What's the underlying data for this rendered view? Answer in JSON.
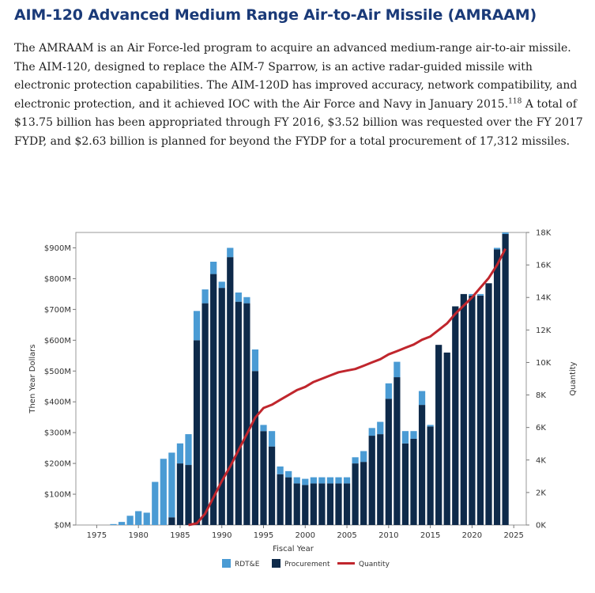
{
  "page": {
    "title": "AIM-120 Advanced Medium Range Air-to-Air Missile (AMRAAM)",
    "paragraph_part1": "The AMRAAM is an Air Force-led program to acquire an advanced medium-range air-to-air missile. The AIM-120, designed to replace the AIM-7 Sparrow, is an active radar-guided missile with electronic protection capabilities. The AIM-120D has improved accuracy, network compatibility, and electronic protection, and it achieved IOC with the Air Force and Navy in January 2015.",
    "footnote": "118",
    "paragraph_part2": " A total of $13.75 billion has been appropriated through FY 2016, $3.52 billion was requested over the FY 2017 FYDP, and $2.63 billion is planned for beyond the FYDP for a total procurement of 17,312 missiles."
  },
  "chart_data": {
    "type": "bar",
    "stacked": true,
    "xlabel": "Fiscal Year",
    "ylabel": "Then Year Dollars",
    "y2label": "Quantity",
    "xlim": [
      1972.5,
      2026.5
    ],
    "ylim": [
      0,
      950
    ],
    "y2lim": [
      0,
      18000
    ],
    "x_ticks": [
      1975,
      1980,
      1985,
      1990,
      1995,
      2000,
      2005,
      2010,
      2015,
      2020,
      2025
    ],
    "y_ticks": [
      0,
      100,
      200,
      300,
      400,
      500,
      600,
      700,
      800,
      900
    ],
    "y_tick_labels": [
      "$0M",
      "$100M",
      "$200M",
      "$300M",
      "$400M",
      "$500M",
      "$600M",
      "$700M",
      "$800M",
      "$900M"
    ],
    "y2_ticks": [
      0,
      2000,
      4000,
      6000,
      8000,
      10000,
      12000,
      14000,
      16000,
      18000
    ],
    "y2_tick_labels": [
      "0K",
      "2K",
      "4K",
      "6K",
      "8K",
      "10K",
      "12K",
      "14K",
      "16K",
      "18K"
    ],
    "grid": false,
    "legend_position": "bottom",
    "colors": {
      "rdte": "#4a9bd4",
      "procurement": "#0e2a4a",
      "quantity": "#c0262d"
    },
    "years": [
      1977,
      1978,
      1979,
      1980,
      1981,
      1982,
      1983,
      1984,
      1985,
      1986,
      1987,
      1988,
      1989,
      1990,
      1991,
      1992,
      1993,
      1994,
      1995,
      1996,
      1997,
      1998,
      1999,
      2000,
      2001,
      2002,
      2003,
      2004,
      2005,
      2006,
      2007,
      2008,
      2009,
      2010,
      2011,
      2012,
      2013,
      2014,
      2015,
      2016,
      2017,
      2018,
      2019,
      2020,
      2021,
      2022,
      2023,
      2024
    ],
    "series": [
      {
        "name": "RDT&E",
        "key": "rdte",
        "values": [
          3,
          10,
          30,
          45,
          40,
          140,
          215,
          210,
          65,
          100,
          95,
          45,
          40,
          20,
          30,
          30,
          20,
          70,
          20,
          50,
          25,
          20,
          20,
          20,
          20,
          20,
          20,
          20,
          20,
          20,
          35,
          25,
          40,
          50,
          50,
          40,
          25,
          45,
          5,
          0,
          0,
          0,
          0,
          5,
          5,
          0,
          5,
          5
        ]
      },
      {
        "name": "Procurement",
        "key": "procurement",
        "values": [
          0,
          0,
          0,
          0,
          0,
          0,
          0,
          25,
          200,
          195,
          600,
          720,
          815,
          770,
          870,
          725,
          720,
          500,
          305,
          255,
          165,
          155,
          135,
          130,
          135,
          135,
          135,
          135,
          135,
          200,
          205,
          290,
          295,
          410,
          480,
          265,
          280,
          390,
          320,
          585,
          560,
          710,
          750,
          745,
          745,
          785,
          895,
          945
        ]
      },
      {
        "name": "Quantity",
        "key": "quantity",
        "type": "line",
        "x": [
          1986,
          1987,
          1988,
          1989,
          1990,
          1991,
          1992,
          1993,
          1994,
          1995,
          1996,
          1997,
          1998,
          1999,
          2000,
          2001,
          2002,
          2003,
          2004,
          2005,
          2006,
          2007,
          2008,
          2009,
          2010,
          2011,
          2012,
          2013,
          2014,
          2015,
          2016,
          2017,
          2018,
          2019,
          2020,
          2021,
          2022,
          2023,
          2024
        ],
        "values": [
          0,
          100,
          700,
          1700,
          2700,
          3600,
          4600,
          5600,
          6600,
          7200,
          7400,
          7700,
          8000,
          8300,
          8500,
          8800,
          9000,
          9200,
          9400,
          9500,
          9600,
          9800,
          10000,
          10200,
          10500,
          10700,
          10900,
          11100,
          11400,
          11600,
          12000,
          12400,
          13000,
          13500,
          14000,
          14600,
          15200,
          16000,
          17000
        ]
      }
    ]
  }
}
